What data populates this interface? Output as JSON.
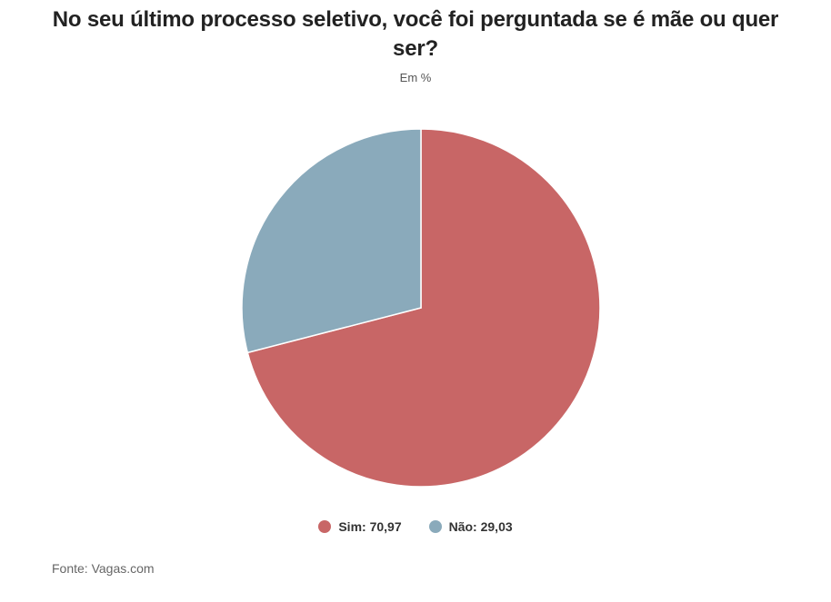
{
  "chart_data": {
    "type": "pie",
    "title": "No seu último processo seletivo, você foi perguntada se é mãe ou quer ser?",
    "subtitle": "Em %",
    "slices": [
      {
        "label": "Sim",
        "value": 70.97,
        "display": "70,97",
        "color": "#c86666"
      },
      {
        "label": "Não",
        "value": 29.03,
        "display": "29,03",
        "color": "#8aaabb"
      }
    ],
    "legend_position": "bottom-center",
    "source": "Fonte: Vagas.com"
  }
}
